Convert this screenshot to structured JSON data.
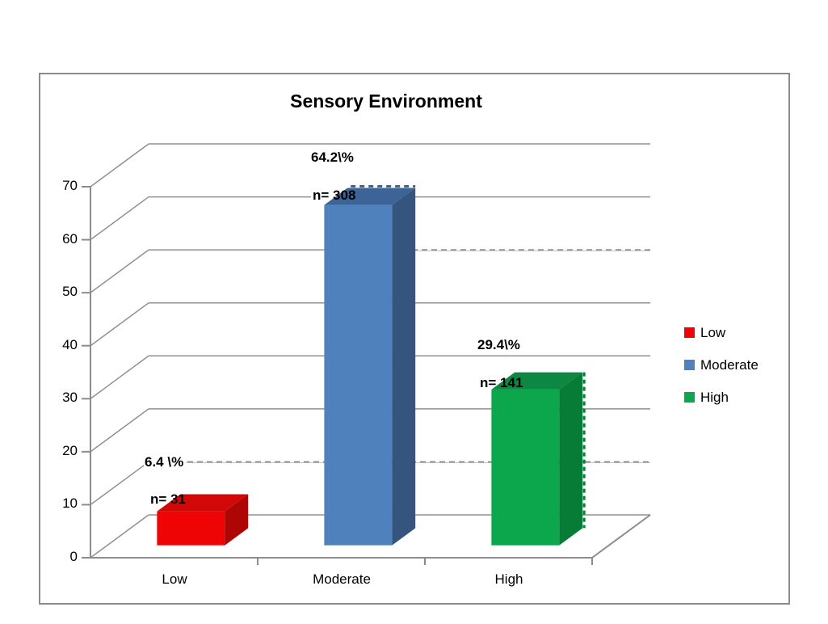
{
  "chart": {
    "border_color": "#8c8c8c",
    "grid_color": "#909090",
    "axis_color": "#8c8c8c"
  },
  "chart_data": {
    "type": "bar",
    "projection": "3d",
    "title": "Sensory Environment",
    "categories": [
      "Low",
      "Moderate",
      "High"
    ],
    "values": [
      6.4,
      64.2,
      29.4
    ],
    "counts": [
      31,
      308,
      141
    ],
    "xlabel": "",
    "ylabel": "",
    "ylim": [
      0,
      70
    ],
    "yticks": [
      70,
      60,
      50,
      40,
      30,
      20,
      10,
      0
    ],
    "grid": true,
    "legend_position": "right",
    "points": [
      {
        "category": "Low",
        "value": 6.4,
        "n": 31,
        "pct_label": "6.4 \\%",
        "n_label": "n= 31",
        "front": "#ee0404",
        "top": "#d20707",
        "side": "#ae0505"
      },
      {
        "category": "Moderate",
        "value": 64.2,
        "n": 308,
        "pct_label": "64.2\\%",
        "n_label": "n= 308",
        "front": "#4f81bd",
        "top": "#3c6496",
        "side": "#35547e"
      },
      {
        "category": "High",
        "value": 29.4,
        "n": 141,
        "pct_label": "29.4\\%",
        "n_label": "n= 141",
        "front": "#0ca64c",
        "top": "#0e8742",
        "side": "#067c36"
      }
    ]
  },
  "legend": {
    "items": [
      {
        "label": "Low",
        "color": "#ee0404"
      },
      {
        "label": "Moderate",
        "color": "#4f81bd"
      },
      {
        "label": "High",
        "color": "#0ca64c"
      }
    ]
  }
}
